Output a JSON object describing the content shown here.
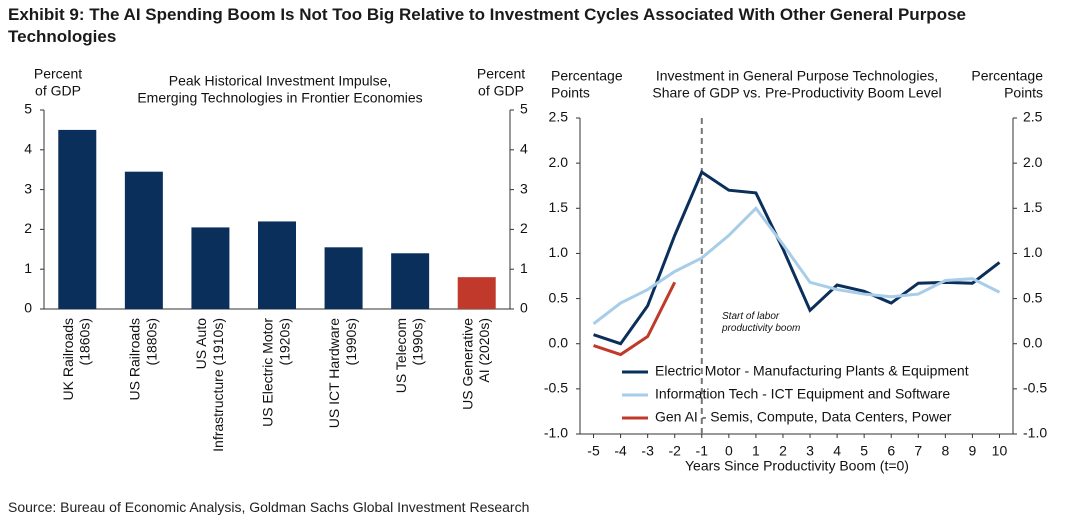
{
  "title": "Exhibit 9: The AI Spending Boom Is Not Too Big Relative to Investment Cycles Associated With Other General Purpose Technologies",
  "source": "Source: Bureau of Economic Analysis, Goldman Sachs Global Investment Research",
  "chart_data": [
    {
      "type": "bar",
      "title": "Peak Historical Investment Impulse,\nEmerging Technologies in Frontier Economies",
      "ylabel": "Percent\nof GDP",
      "y2label": "Percent\nof GDP",
      "categories": [
        "UK Railroads\n(1860s)",
        "US Railroads\n(1880s)",
        "US Auto\nInfrastructure (1910s)",
        "US Electric Motor\n(1920s)",
        "US ICT Hardware\n(1990s)",
        "US Telecom\n(1990s)",
        "US Generative\nAI (2020s)"
      ],
      "values": [
        4.5,
        3.45,
        2.05,
        2.2,
        1.55,
        1.4,
        0.8
      ],
      "colors": [
        "#0b2f5b",
        "#0b2f5b",
        "#0b2f5b",
        "#0b2f5b",
        "#0b2f5b",
        "#0b2f5b",
        "#c0392b"
      ],
      "ylim": [
        0,
        5
      ],
      "yticks": [
        0,
        1,
        2,
        3,
        4,
        5
      ],
      "y2lim": [
        0,
        5
      ],
      "y2ticks": [
        0,
        1,
        2,
        3,
        4,
        5
      ]
    },
    {
      "type": "line",
      "title": "Investment in General Purpose Technologies,\nShare of GDP vs. Pre-Productivity Boom Level",
      "ylabel": "Percentage\nPoints",
      "y2label": "Percentage\nPoints",
      "xlabel": "Years Since Productivity Boom (t=0)",
      "annotation": "Start of labor\nproductivity boom",
      "vline": -1,
      "x": [
        -5,
        -4,
        -3,
        -2,
        -1,
        0,
        1,
        2,
        3,
        4,
        5,
        6,
        7,
        8,
        9,
        10
      ],
      "xlim": [
        -5.5,
        10.5
      ],
      "xticks": [
        -5,
        -4,
        -3,
        -2,
        -1,
        0,
        1,
        2,
        3,
        4,
        5,
        6,
        7,
        8,
        9,
        10
      ],
      "ylim": [
        -1,
        2.5
      ],
      "yticks": [
        {
          "value": -1,
          "label": "-1.0"
        },
        -0.5,
        {
          "value": 0,
          "label": "0.0"
        },
        0.5,
        {
          "value": 1,
          "label": "1.0"
        },
        1.5,
        {
          "value": 2,
          "label": "2.0"
        },
        2.5
      ],
      "y2lim": [
        -1,
        2.5
      ],
      "y2ticks": [
        {
          "value": -1,
          "label": "-1.0"
        },
        -0.5,
        {
          "value": 0,
          "label": "0.0"
        },
        0.5,
        {
          "value": 1,
          "label": "1.0"
        },
        1.5,
        {
          "value": 2,
          "label": "2.0"
        },
        2.5
      ],
      "series": [
        {
          "name": "Electric Motor -  Manufacturing Plants & Equipment",
          "color": "#0b2f5b",
          "values": [
            0.1,
            0.0,
            0.42,
            1.2,
            1.9,
            1.7,
            1.67,
            1.05,
            0.37,
            0.65,
            0.58,
            0.45,
            0.67,
            0.68,
            0.67,
            0.9
          ]
        },
        {
          "name": "Information Tech - ICT Equipment and Software",
          "color": "#a8cde8",
          "values": [
            0.22,
            0.45,
            0.6,
            0.8,
            0.95,
            1.2,
            1.5,
            1.1,
            0.68,
            0.6,
            0.55,
            0.52,
            0.55,
            0.7,
            0.72,
            0.57
          ]
        },
        {
          "name": "Gen AI - Semis, Compute, Data Centers, Power",
          "color": "#c0392b",
          "values": [
            -0.02,
            -0.12,
            0.08,
            0.68,
            null,
            null,
            null,
            null,
            null,
            null,
            null,
            null,
            null,
            null,
            null,
            null
          ]
        }
      ]
    }
  ]
}
